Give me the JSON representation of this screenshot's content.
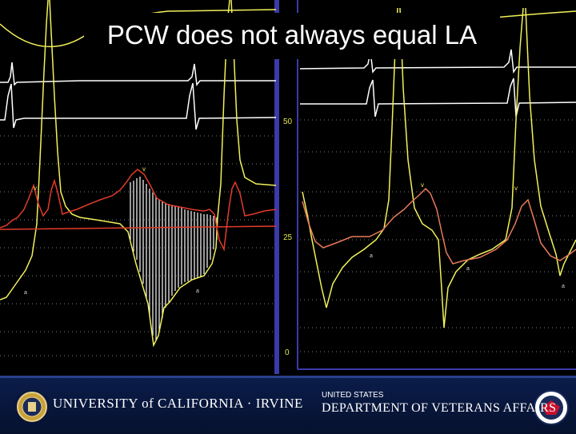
{
  "slide": {
    "title": "PCW does not always equal LA"
  },
  "tracing": {
    "scale_labels": [
      "50",
      "25",
      "0"
    ],
    "wave_labels": [
      "a",
      "v"
    ],
    "colors": {
      "ecg": "#ffffff",
      "pcw": "#f2f05a",
      "la": "#e23b2a",
      "grid": "#7a7a7a",
      "frame": "#3a3aa8"
    }
  },
  "footer": {
    "uci_logo_text": "UNIVERSITY of CALIFORNIA · IRVINE",
    "va_line1": "UNITED STATES",
    "va_line2": "DEPARTMENT OF VETERANS AFFAIRS",
    "uci_seal_icon": "uci-seal-icon",
    "va_seal_icon": "va-seal-icon",
    "bg_color": "#0a1c4a"
  }
}
